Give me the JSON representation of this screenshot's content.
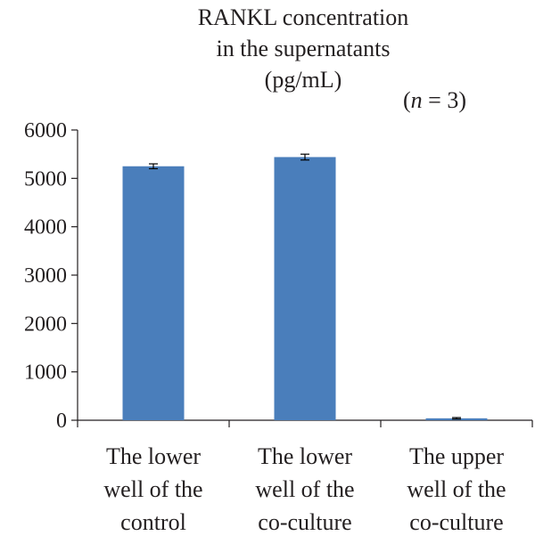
{
  "chart_data": {
    "type": "bar",
    "title_lines": [
      "RANKL concentration",
      "in the supernatants",
      "(pg/mL)"
    ],
    "annotation": "(n = 3)",
    "categories": [
      [
        "The lower",
        "well of the",
        "control"
      ],
      [
        "The lower",
        "well of the",
        "co-culture"
      ],
      [
        "The upper",
        "well of the",
        "co-culture"
      ]
    ],
    "values": [
      5250,
      5440,
      40
    ],
    "errors": [
      50,
      60,
      15
    ],
    "ylim": [
      0,
      6000
    ],
    "yticks": [
      0,
      1000,
      2000,
      3000,
      4000,
      5000,
      6000
    ],
    "grid": false,
    "bar_color": "#4a7ebb",
    "xlabel": "",
    "ylabel": ""
  }
}
